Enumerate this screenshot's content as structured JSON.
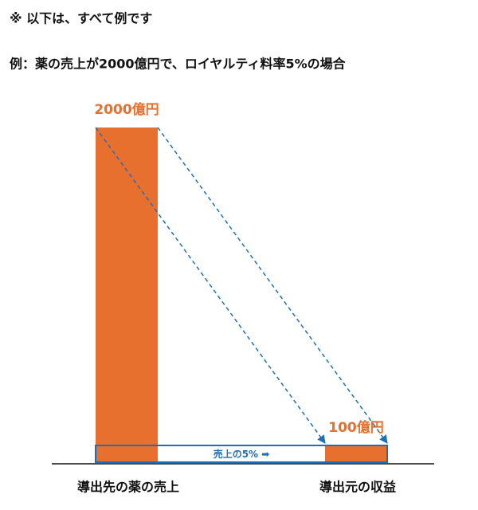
{
  "chart_data": {
    "type": "bar",
    "notice": "※ 以下は、すべて例です",
    "title": "例：薬の売上が2000億円で、ロイヤルティ料率5%の場合",
    "categories": [
      "導出先の薬の売上",
      "導出元の収益"
    ],
    "values": [
      2000,
      100
    ],
    "value_labels": [
      "2000億円",
      "100億円"
    ],
    "color": "#e8702f",
    "annotation": "売上の5% ➡"
  }
}
